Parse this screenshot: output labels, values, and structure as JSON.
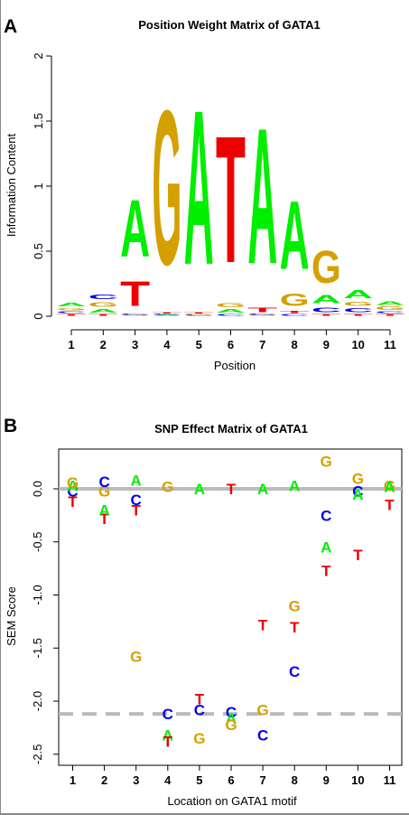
{
  "figure": {
    "panel_a_label": "A",
    "panel_b_label": "B"
  },
  "colors": {
    "A": "#00ee00",
    "C": "#0000ee",
    "G": "#d4a000",
    "T": "#ee0000",
    "ref_line": "#bbbbbb"
  },
  "chart_data": [
    {
      "type": "sequence_logo",
      "title": "Position Weight Matrix of GATA1",
      "xlabel": "Position",
      "ylabel": "Information Content",
      "xticks": [
        1,
        2,
        3,
        4,
        5,
        6,
        7,
        8,
        9,
        10,
        11
      ],
      "yticks": [
        "0",
        "0.5",
        "1",
        "1.5",
        "2"
      ],
      "ylim": [
        0,
        2
      ],
      "stacks": [
        [
          [
            "T",
            0.02
          ],
          [
            "C",
            0.02
          ],
          [
            "G",
            0.03
          ],
          [
            "A",
            0.04
          ]
        ],
        [
          [
            "T",
            0.02
          ],
          [
            "A",
            0.04
          ],
          [
            "G",
            0.06
          ],
          [
            "C",
            0.06
          ]
        ],
        [
          [
            "G",
            0.01
          ],
          [
            "C",
            0.01
          ],
          [
            "T",
            0.3
          ],
          [
            "A",
            0.7
          ]
        ],
        [
          [
            "A",
            0.01
          ],
          [
            "C",
            0.01
          ],
          [
            "T",
            0.01
          ],
          [
            "G",
            1.9
          ]
        ],
        [
          [
            "C",
            0.01
          ],
          [
            "G",
            0.01
          ],
          [
            "T",
            0.01
          ],
          [
            "A",
            1.9
          ]
        ],
        [
          [
            "C",
            0.02
          ],
          [
            "A",
            0.04
          ],
          [
            "G",
            0.05
          ],
          [
            "T",
            1.56
          ]
        ],
        [
          [
            "G",
            0.01
          ],
          [
            "C",
            0.01
          ],
          [
            "T",
            0.06
          ],
          [
            "A",
            1.67
          ]
        ],
        [
          [
            "C",
            0.02
          ],
          [
            "T",
            0.03
          ],
          [
            "G",
            0.15
          ],
          [
            "A",
            0.84
          ]
        ],
        [
          [
            "T",
            0.02
          ],
          [
            "C",
            0.06
          ],
          [
            "A",
            0.1
          ],
          [
            "G",
            0.4
          ]
        ],
        [
          [
            "T",
            0.02
          ],
          [
            "C",
            0.05
          ],
          [
            "G",
            0.05
          ],
          [
            "A",
            0.1
          ]
        ],
        [
          [
            "T",
            0.02
          ],
          [
            "C",
            0.02
          ],
          [
            "G",
            0.04
          ],
          [
            "A",
            0.04
          ]
        ]
      ]
    },
    {
      "type": "scatter",
      "title": "SNP Effect Matrix of GATA1",
      "xlabel": "Location on GATA1 motif",
      "ylabel": "SEM Score",
      "xticks": [
        1,
        2,
        3,
        4,
        5,
        6,
        7,
        8,
        9,
        10,
        11
      ],
      "yticks": [
        "0.0",
        "-0.5",
        "-1.0",
        "-1.5",
        "-2.0",
        "-2.5"
      ],
      "ylim": [
        -2.55,
        0.3
      ],
      "solid_ref_line": 0,
      "dashed_ref_line": -2.12,
      "points": [
        {
          "x": 1,
          "y": -0.12,
          "l": "T"
        },
        {
          "x": 1,
          "y": -0.02,
          "l": "C"
        },
        {
          "x": 1,
          "y": 0.03,
          "l": "A"
        },
        {
          "x": 1,
          "y": 0.06,
          "l": "G"
        },
        {
          "x": 2,
          "y": -0.28,
          "l": "T"
        },
        {
          "x": 2,
          "y": -0.2,
          "l": "A"
        },
        {
          "x": 2,
          "y": -0.02,
          "l": "G"
        },
        {
          "x": 2,
          "y": 0.07,
          "l": "C"
        },
        {
          "x": 3,
          "y": -0.2,
          "l": "T"
        },
        {
          "x": 3,
          "y": -0.1,
          "l": "C"
        },
        {
          "x": 3,
          "y": 0.08,
          "l": "A"
        },
        {
          "x": 3,
          "y": -1.58,
          "l": "G"
        },
        {
          "x": 4,
          "y": 0.02,
          "l": "G"
        },
        {
          "x": 4,
          "y": -2.12,
          "l": "C"
        },
        {
          "x": 4,
          "y": -2.32,
          "l": "A"
        },
        {
          "x": 4,
          "y": -2.38,
          "l": "T"
        },
        {
          "x": 5,
          "y": 0.0,
          "l": "A"
        },
        {
          "x": 5,
          "y": -1.98,
          "l": "T"
        },
        {
          "x": 5,
          "y": -2.08,
          "l": "C"
        },
        {
          "x": 5,
          "y": -2.35,
          "l": "G"
        },
        {
          "x": 6,
          "y": 0.0,
          "l": "T"
        },
        {
          "x": 6,
          "y": -2.1,
          "l": "C"
        },
        {
          "x": 6,
          "y": -2.16,
          "l": "A"
        },
        {
          "x": 6,
          "y": -2.22,
          "l": "G"
        },
        {
          "x": 7,
          "y": 0.0,
          "l": "A"
        },
        {
          "x": 7,
          "y": -1.28,
          "l": "T"
        },
        {
          "x": 7,
          "y": -2.08,
          "l": "G"
        },
        {
          "x": 7,
          "y": -2.32,
          "l": "C"
        },
        {
          "x": 8,
          "y": 0.03,
          "l": "A"
        },
        {
          "x": 8,
          "y": -1.1,
          "l": "G"
        },
        {
          "x": 8,
          "y": -1.3,
          "l": "T"
        },
        {
          "x": 8,
          "y": -1.72,
          "l": "C"
        },
        {
          "x": 9,
          "y": 0.26,
          "l": "G"
        },
        {
          "x": 9,
          "y": -0.25,
          "l": "C"
        },
        {
          "x": 9,
          "y": -0.55,
          "l": "A"
        },
        {
          "x": 9,
          "y": -0.77,
          "l": "T"
        },
        {
          "x": 10,
          "y": 0.1,
          "l": "G"
        },
        {
          "x": 10,
          "y": -0.02,
          "l": "C"
        },
        {
          "x": 10,
          "y": -0.05,
          "l": "A"
        },
        {
          "x": 10,
          "y": -0.62,
          "l": "T"
        },
        {
          "x": 11,
          "y": 0.03,
          "l": "G"
        },
        {
          "x": 11,
          "y": 0.02,
          "l": "A"
        },
        {
          "x": 11,
          "y": -0.15,
          "l": "T"
        }
      ]
    }
  ]
}
